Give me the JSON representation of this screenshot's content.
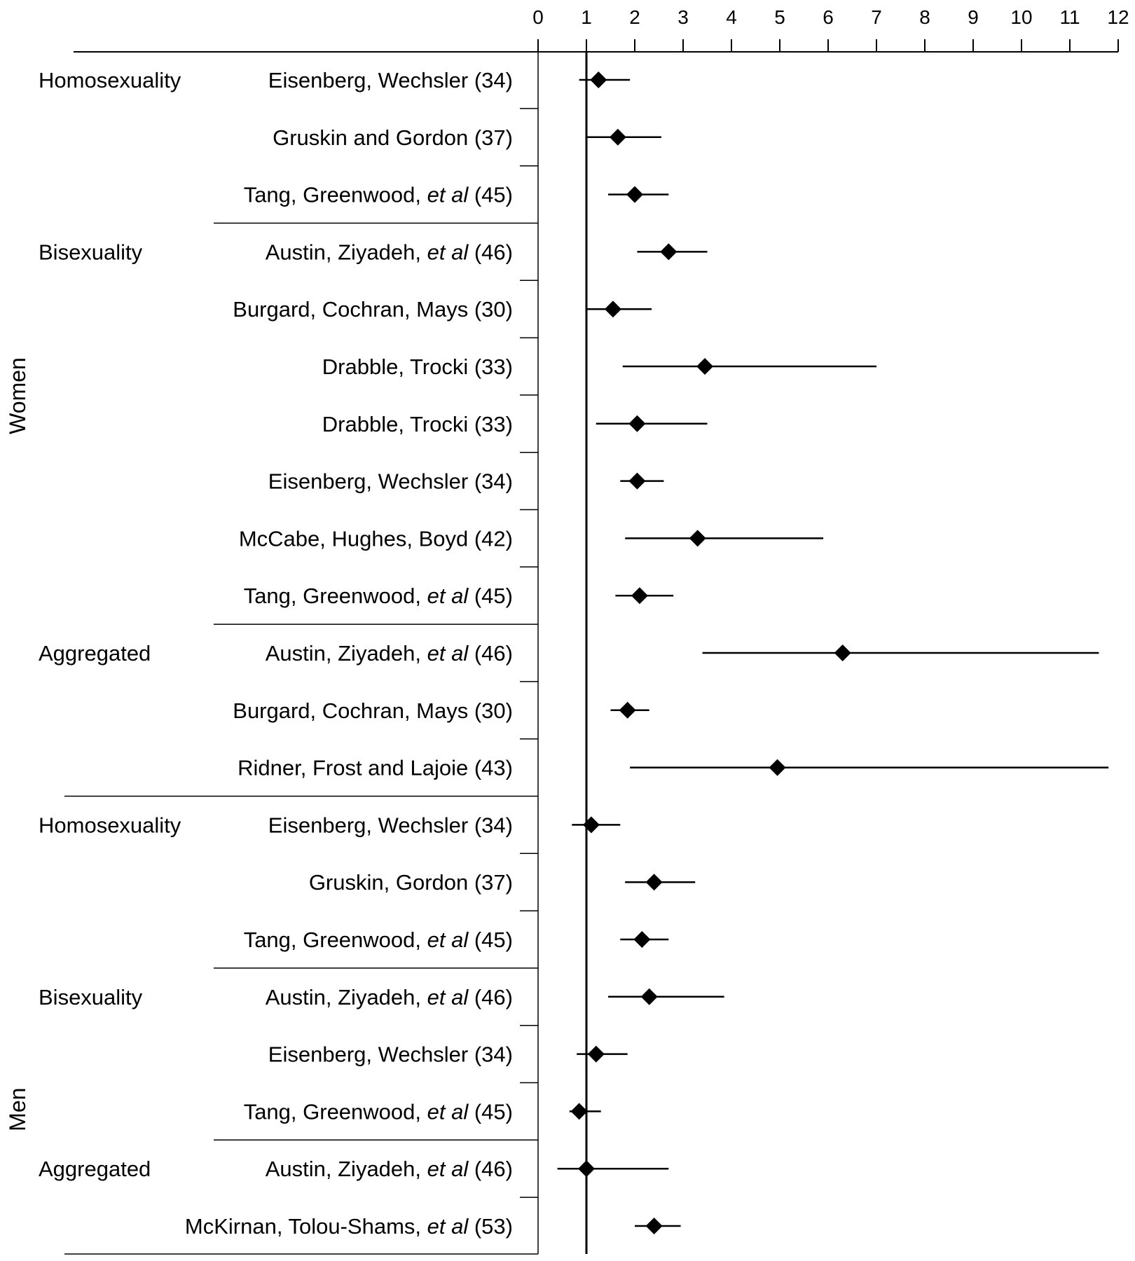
{
  "chart_data": {
    "type": "forest",
    "x_axis": {
      "range": [
        0,
        12
      ],
      "ticks": [
        0,
        1,
        2,
        3,
        4,
        5,
        6,
        7,
        8,
        9,
        10,
        11,
        12
      ],
      "reference_line": 1,
      "position": "top"
    },
    "sex_labels": [
      "Women",
      "Men"
    ],
    "group_labels": [
      {
        "sex": "Women",
        "group": "Homosexuality"
      },
      {
        "sex": "Women",
        "group": "Bisexuality"
      },
      {
        "sex": "Women",
        "group": "Aggregated"
      },
      {
        "sex": "Men",
        "group": "Homosexuality"
      },
      {
        "sex": "Men",
        "group": "Bisexuality"
      },
      {
        "sex": "Men",
        "group": "Aggregated"
      }
    ],
    "rows": [
      {
        "sex": "Women",
        "group": "Homosexuality",
        "study": "Eisenberg, Wechsler",
        "etal": false,
        "ref": "(34)",
        "estimate": 1.25,
        "ci": [
          0.85,
          1.9
        ]
      },
      {
        "sex": "Women",
        "group": "Homosexuality",
        "study": "Gruskin and Gordon",
        "etal": false,
        "ref": "(37)",
        "estimate": 1.65,
        "ci": [
          1.0,
          2.55
        ]
      },
      {
        "sex": "Women",
        "group": "Homosexuality",
        "study": "Tang, Greenwood,",
        "etal": true,
        "ref": "(45)",
        "estimate": 2.0,
        "ci": [
          1.45,
          2.7
        ]
      },
      {
        "sex": "Women",
        "group": "Bisexuality",
        "study": "Austin, Ziyadeh,",
        "etal": true,
        "ref": "(46)",
        "estimate": 2.7,
        "ci": [
          2.05,
          3.5
        ]
      },
      {
        "sex": "Women",
        "group": "Bisexuality",
        "study": "Burgard, Cochran, Mays",
        "etal": false,
        "ref": "(30)",
        "estimate": 1.55,
        "ci": [
          1.0,
          2.35
        ]
      },
      {
        "sex": "Women",
        "group": "Bisexuality",
        "study": "Drabble, Trocki",
        "etal": false,
        "ref": "(33)",
        "estimate": 3.45,
        "ci": [
          1.75,
          7.0
        ]
      },
      {
        "sex": "Women",
        "group": "Bisexuality",
        "study": "Drabble, Trocki",
        "etal": false,
        "ref": "(33)",
        "estimate": 2.05,
        "ci": [
          1.2,
          3.5
        ]
      },
      {
        "sex": "Women",
        "group": "Bisexuality",
        "study": "Eisenberg, Wechsler",
        "etal": false,
        "ref": "(34)",
        "estimate": 2.05,
        "ci": [
          1.7,
          2.6
        ]
      },
      {
        "sex": "Women",
        "group": "Bisexuality",
        "study": "McCabe, Hughes, Boyd",
        "etal": false,
        "ref": "(42)",
        "estimate": 3.3,
        "ci": [
          1.8,
          5.9
        ]
      },
      {
        "sex": "Women",
        "group": "Bisexuality",
        "study": "Tang, Greenwood,",
        "etal": true,
        "ref": "(45)",
        "estimate": 2.1,
        "ci": [
          1.6,
          2.8
        ]
      },
      {
        "sex": "Women",
        "group": "Aggregated",
        "study": "Austin, Ziyadeh,",
        "etal": true,
        "ref": "(46)",
        "estimate": 6.3,
        "ci": [
          3.4,
          11.6
        ]
      },
      {
        "sex": "Women",
        "group": "Aggregated",
        "study": "Burgard, Cochran, Mays",
        "etal": false,
        "ref": "(30)",
        "estimate": 1.85,
        "ci": [
          1.5,
          2.3
        ]
      },
      {
        "sex": "Women",
        "group": "Aggregated",
        "study": "Ridner, Frost and Lajoie",
        "etal": false,
        "ref": "(43)",
        "estimate": 4.95,
        "ci": [
          1.9,
          11.8
        ]
      },
      {
        "sex": "Men",
        "group": "Homosexuality",
        "study": "Eisenberg, Wechsler",
        "etal": false,
        "ref": "(34)",
        "estimate": 1.1,
        "ci": [
          0.7,
          1.7
        ]
      },
      {
        "sex": "Men",
        "group": "Homosexuality",
        "study": "Gruskin, Gordon",
        "etal": false,
        "ref": "(37)",
        "estimate": 2.4,
        "ci": [
          1.8,
          3.25
        ]
      },
      {
        "sex": "Men",
        "group": "Homosexuality",
        "study": "Tang, Greenwood,",
        "etal": true,
        "ref": "(45)",
        "estimate": 2.15,
        "ci": [
          1.7,
          2.7
        ]
      },
      {
        "sex": "Men",
        "group": "Bisexuality",
        "study": "Austin, Ziyadeh,",
        "etal": true,
        "ref": "(46)",
        "estimate": 2.3,
        "ci": [
          1.45,
          3.85
        ]
      },
      {
        "sex": "Men",
        "group": "Bisexuality",
        "study": "Eisenberg, Wechsler",
        "etal": false,
        "ref": "(34)",
        "estimate": 1.2,
        "ci": [
          0.8,
          1.85
        ]
      },
      {
        "sex": "Men",
        "group": "Bisexuality",
        "study": "Tang, Greenwood,",
        "etal": true,
        "ref": "(45)",
        "estimate": 0.85,
        "ci": [
          0.65,
          1.3
        ]
      },
      {
        "sex": "Men",
        "group": "Aggregated",
        "study": "Austin, Ziyadeh,",
        "etal": true,
        "ref": "(46)",
        "estimate": 1.0,
        "ci": [
          0.4,
          2.7
        ]
      },
      {
        "sex": "Men",
        "group": "Aggregated",
        "study": "McKirnan, Tolou-Shams,",
        "etal": true,
        "ref": "(53)",
        "estimate": 2.4,
        "ci": [
          2.0,
          2.95
        ]
      }
    ]
  },
  "labels": {
    "etal": "et al"
  }
}
